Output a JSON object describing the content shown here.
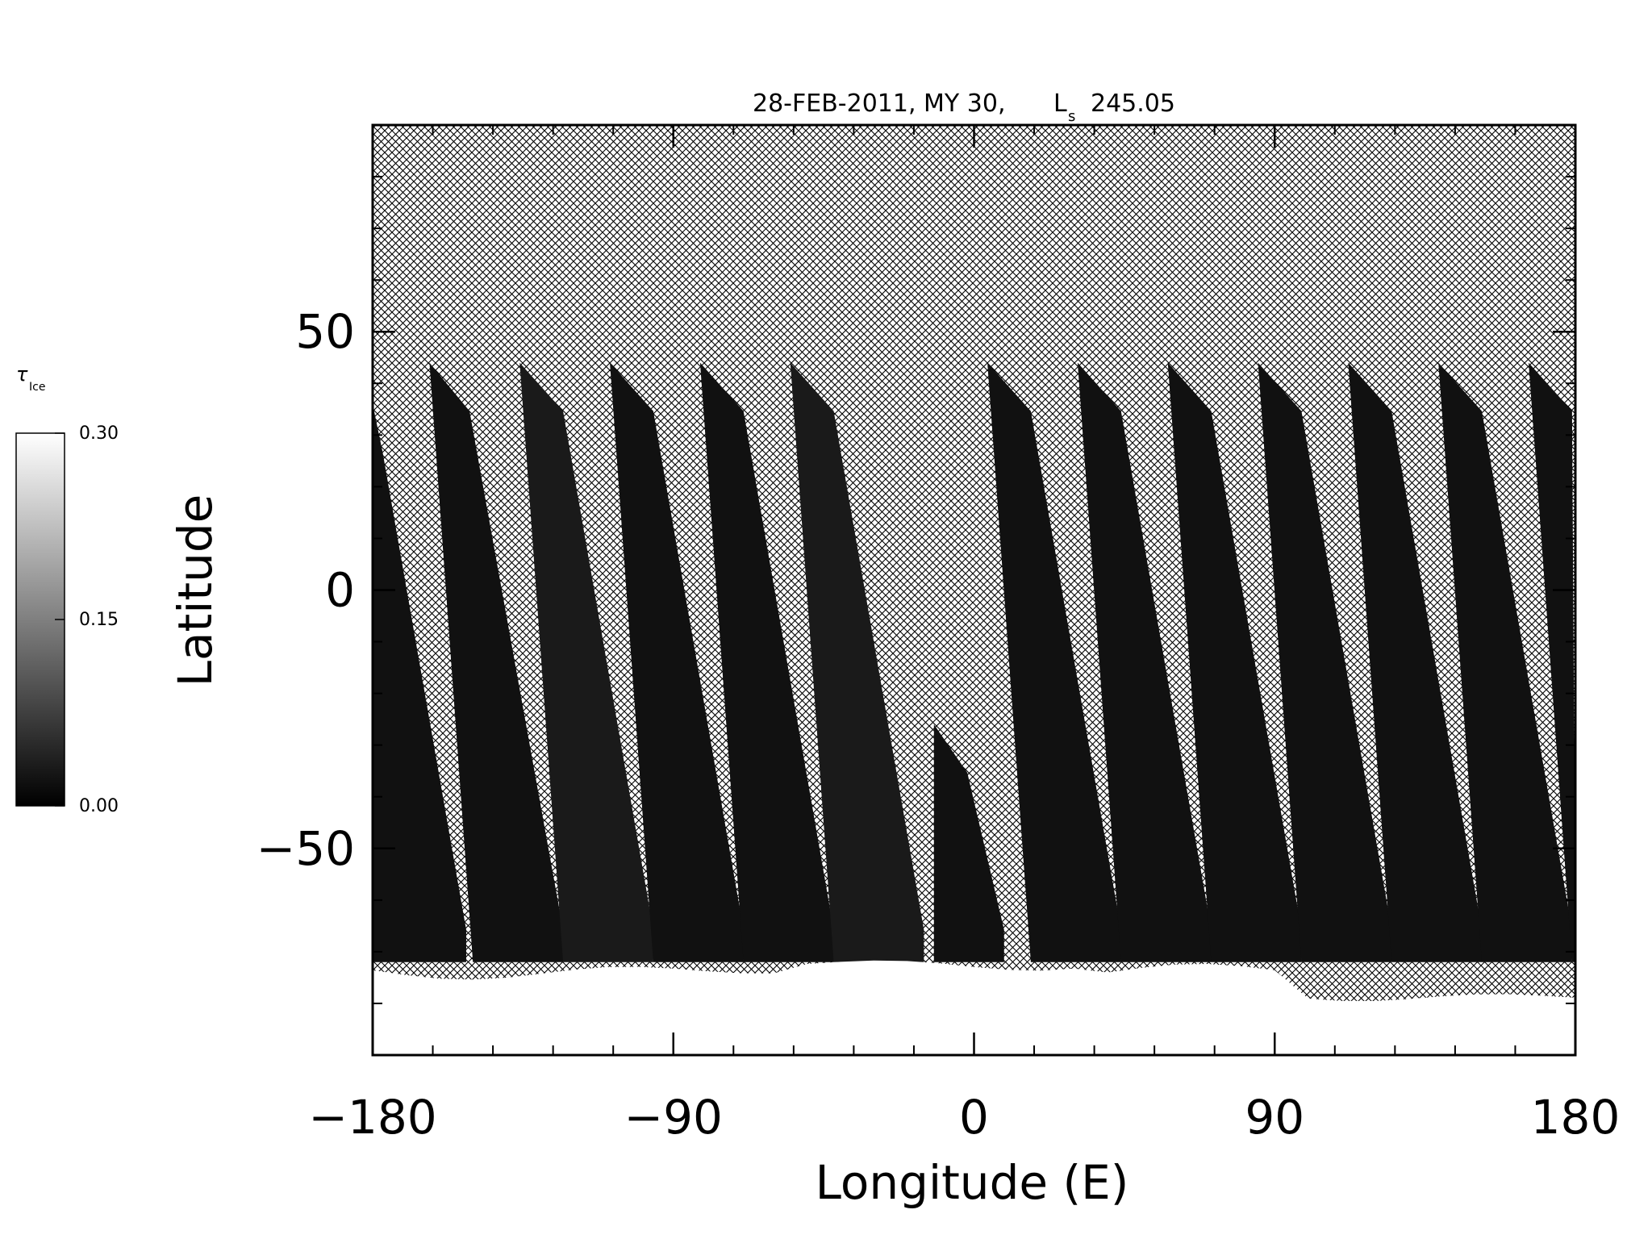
{
  "chart_data": {
    "type": "heatmap",
    "title": "28-FEB-2011, MY 30,",
    "title_ls_symbol": "L",
    "title_ls_subscript": "s",
    "title_ls_value": "245.05",
    "xlabel": "Longitude (E)",
    "ylabel": "Latitude",
    "xlim": [
      -180,
      180
    ],
    "ylim": [
      -90,
      90
    ],
    "x_ticks": [
      -180,
      -90,
      0,
      90,
      180
    ],
    "x_tick_labels": [
      "−180",
      "−90",
      "0",
      "90",
      "180"
    ],
    "y_ticks": [
      -50,
      0,
      50
    ],
    "y_tick_labels": [
      "−50",
      "0",
      "50"
    ],
    "x_minor_step": 18,
    "y_minor_step": 10,
    "no_data_fill": "crosshatch",
    "colorbar": {
      "label_symbol": "τ",
      "label_subscript": "Ice",
      "min": 0.0,
      "max": 0.3,
      "tick_labels": [
        "0.00",
        "0.15",
        "0.30"
      ],
      "colormap": "grayscale",
      "color_min": "#000000",
      "color_max": "#ffffff"
    },
    "swaths": [
      {
        "lon_top_left": -180,
        "lon_top_right": -177,
        "lon_bottom_left": -180,
        "lon_bottom_right": -152,
        "lat_top": 36,
        "lat_bottom": -72,
        "value": 0.02
      },
      {
        "lon_top_left": -163,
        "lon_top_right": -151,
        "lon_bottom_left": -150,
        "lon_bottom_right": -123,
        "lat_top": 44,
        "lat_bottom": -72,
        "value": 0.02
      },
      {
        "lon_top_left": -136,
        "lon_top_right": -123,
        "lon_bottom_left": -123,
        "lon_bottom_right": -96,
        "lat_top": 44,
        "lat_bottom": -72,
        "value": 0.03
      },
      {
        "lon_top_left": -109,
        "lon_top_right": -96,
        "lon_bottom_left": -96,
        "lon_bottom_right": -69,
        "lat_top": 44,
        "lat_bottom": -72,
        "value": 0.02
      },
      {
        "lon_top_left": -82,
        "lon_top_right": -69,
        "lon_bottom_left": -69,
        "lon_bottom_right": -42,
        "lat_top": 44,
        "lat_bottom": -72,
        "value": 0.02
      },
      {
        "lon_top_left": -55,
        "lon_top_right": -42,
        "lon_bottom_left": -42,
        "lon_bottom_right": -15,
        "lat_top": 44,
        "lat_bottom": -72,
        "value": 0.03
      },
      {
        "lon_top_left": -12,
        "lon_top_right": -2,
        "lon_bottom_left": -12,
        "lon_bottom_right": 9,
        "lat_top": -26,
        "lat_bottom": -72,
        "value": 0.02
      },
      {
        "lon_top_left": 4,
        "lon_top_right": 17,
        "lon_bottom_left": 17,
        "lon_bottom_right": 44,
        "lat_top": 44,
        "lat_bottom": -72,
        "value": 0.02
      },
      {
        "lon_top_left": 31,
        "lon_top_right": 44,
        "lon_bottom_left": 44,
        "lon_bottom_right": 71,
        "lat_top": 44,
        "lat_bottom": -72,
        "value": 0.02
      },
      {
        "lon_top_left": 58,
        "lon_top_right": 71,
        "lon_bottom_left": 71,
        "lon_bottom_right": 98,
        "lat_top": 44,
        "lat_bottom": -72,
        "value": 0.02
      },
      {
        "lon_top_left": 85,
        "lon_top_right": 98,
        "lon_bottom_left": 98,
        "lon_bottom_right": 125,
        "lat_top": 44,
        "lat_bottom": -72,
        "value": 0.02
      },
      {
        "lon_top_left": 112,
        "lon_top_right": 125,
        "lon_bottom_left": 125,
        "lon_bottom_right": 152,
        "lat_top": 44,
        "lat_bottom": -72,
        "value": 0.02
      },
      {
        "lon_top_left": 139,
        "lon_top_right": 152,
        "lon_bottom_left": 152,
        "lon_bottom_right": 179,
        "lat_top": 44,
        "lat_bottom": -72,
        "value": 0.02
      },
      {
        "lon_top_left": 166,
        "lon_top_right": 179,
        "lon_bottom_left": 179,
        "lon_bottom_right": 180,
        "lat_top": 44,
        "lat_bottom": -72,
        "value": 0.02
      }
    ],
    "polar_cap": {
      "lat_edge": -72,
      "value": 0.3
    }
  }
}
